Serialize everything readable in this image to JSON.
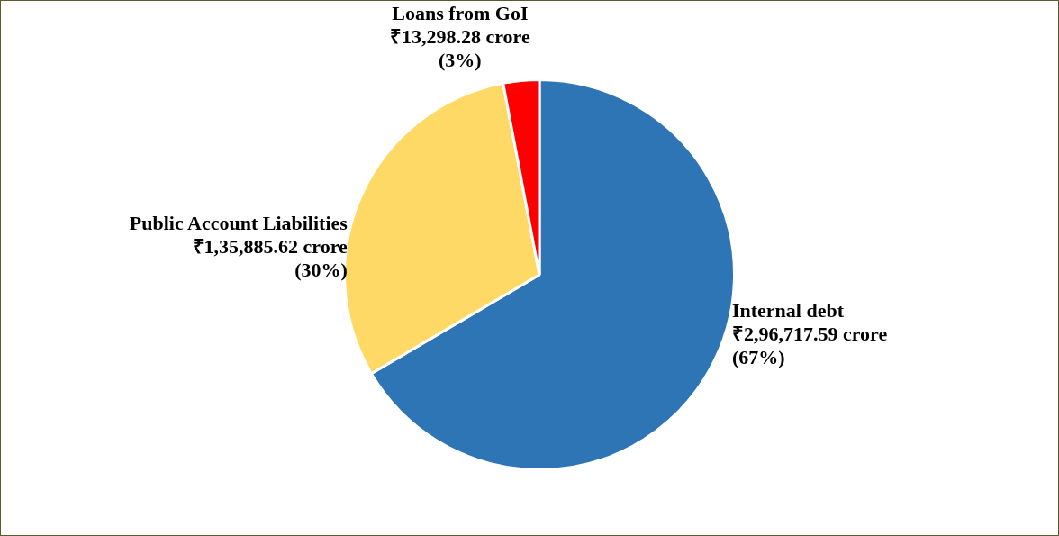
{
  "chart_data": {
    "type": "pie",
    "categories": [
      "Internal debt",
      "Public Account Liabilities",
      "Loans from GoI"
    ],
    "values": [
      296717.59,
      135885.62,
      13298.28
    ],
    "colors": [
      "#2e75b6",
      "#ffd966",
      "#ff0000"
    ],
    "value_labels": [
      "₹2,96,717.59 crore\n(67%)",
      "₹1,35,885.62 crore\n(30%)",
      "₹13,298.28 crore\n(3%)"
    ],
    "legend": false
  }
}
